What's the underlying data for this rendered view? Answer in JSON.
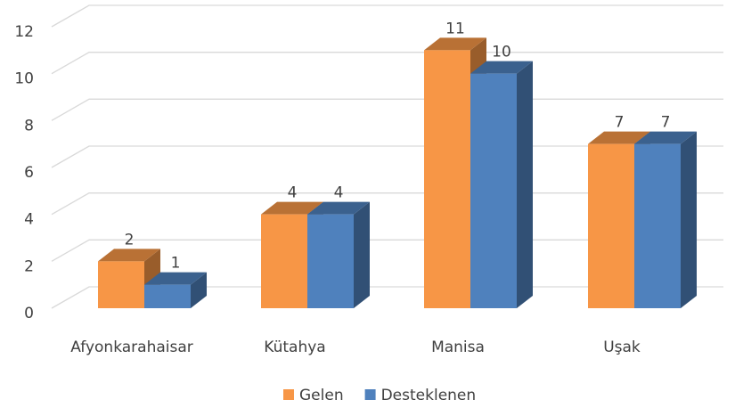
{
  "chart_data": {
    "type": "bar3d",
    "categories": [
      "Afyonkarahaisar",
      "Kütahya",
      "Manisa",
      "Uşak"
    ],
    "series": [
      {
        "name": "Gelen",
        "color": "#f79646",
        "values": [
          2,
          4,
          11,
          7
        ]
      },
      {
        "name": "Desteklenen",
        "color": "#4f81bd",
        "values": [
          1,
          4,
          10,
          7
        ]
      }
    ],
    "ylim": [
      0,
      12
    ],
    "yticks": [
      0,
      2,
      4,
      6,
      8,
      10,
      12
    ],
    "grid": true,
    "legend": "bottom"
  }
}
